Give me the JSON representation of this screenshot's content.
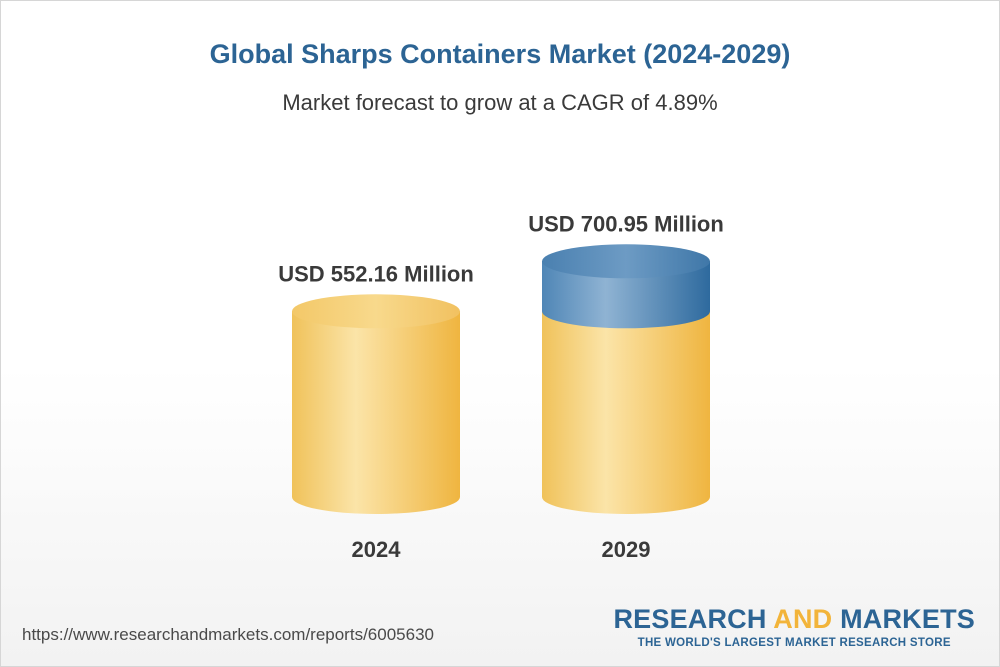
{
  "header": {
    "title": "Global Sharps Containers Market (2024-2029)",
    "subtitle": "Market forecast to grow at a CAGR of 4.89%"
  },
  "chart_data": {
    "type": "bar",
    "style": "3d-cylinder",
    "categories": [
      "2024",
      "2029"
    ],
    "values": [
      552.16,
      700.95
    ],
    "value_labels": [
      "USD 552.16 Million",
      "USD 700.95 Million"
    ],
    "unit": "USD Million",
    "title": "Global Sharps Containers Market (2024-2029)",
    "subtitle": "Market forecast to grow at a CAGR of 4.89%",
    "cagr": "4.89%",
    "grid": false,
    "legend": "none",
    "colors": {
      "base": "#f2c35e",
      "growth": "#4f86b6"
    }
  },
  "footer": {
    "source_url": "https://www.researchandmarkets.com/reports/6005630",
    "brand_part1": "RESEARCH ",
    "brand_part2": "AND",
    "brand_part3": " MARKETS",
    "brand_tagline": "THE WORLD'S LARGEST MARKET RESEARCH STORE"
  }
}
